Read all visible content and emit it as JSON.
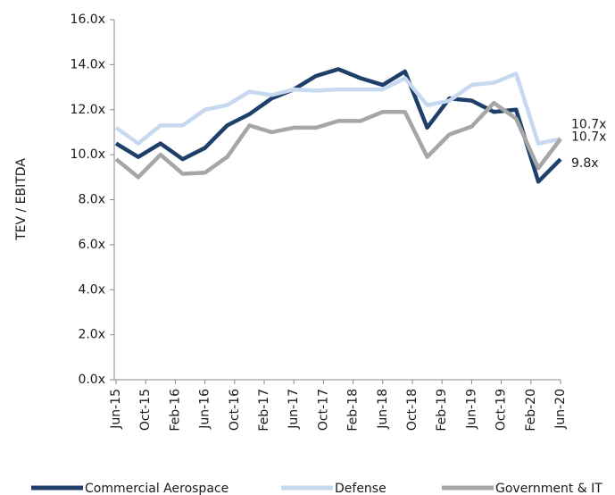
{
  "chart_data": {
    "type": "line",
    "y_label": "TEV / EBITDA",
    "x": [
      0,
      3,
      6,
      9,
      12,
      15,
      18,
      21,
      24,
      27,
      30,
      33,
      36,
      39,
      42,
      45,
      48,
      51,
      54,
      57,
      60
    ],
    "xlim": [
      0,
      60
    ],
    "xticks": [
      {
        "value": 0,
        "label": "Jun-15"
      },
      {
        "value": 4,
        "label": "Oct-15"
      },
      {
        "value": 8,
        "label": "Feb-16"
      },
      {
        "value": 12,
        "label": "Jun-16"
      },
      {
        "value": 16,
        "label": "Oct-16"
      },
      {
        "value": 20,
        "label": "Feb-17"
      },
      {
        "value": 24,
        "label": "Jun-17"
      },
      {
        "value": 28,
        "label": "Oct-17"
      },
      {
        "value": 32,
        "label": "Feb-18"
      },
      {
        "value": 36,
        "label": "Jun-18"
      },
      {
        "value": 40,
        "label": "Oct-18"
      },
      {
        "value": 44,
        "label": "Feb-19"
      },
      {
        "value": 48,
        "label": "Jun-19"
      },
      {
        "value": 52,
        "label": "Oct-19"
      },
      {
        "value": 56,
        "label": "Feb-20"
      },
      {
        "value": 60,
        "label": "Jun-20"
      }
    ],
    "ylim": [
      0,
      16
    ],
    "yticks": [
      {
        "value": 0,
        "label": "0.0x"
      },
      {
        "value": 2,
        "label": "2.0x"
      },
      {
        "value": 4,
        "label": "4.0x"
      },
      {
        "value": 6,
        "label": "6.0x"
      },
      {
        "value": 8,
        "label": "8.0x"
      },
      {
        "value": 10,
        "label": "10.0x"
      },
      {
        "value": 12,
        "label": "12.0x"
      },
      {
        "value": 14,
        "label": "14.0x"
      },
      {
        "value": 16,
        "label": "16.0x"
      }
    ],
    "legend": "bottom",
    "series": [
      {
        "name": "Commercial Aerospace",
        "color": "#1f3f6b",
        "values": [
          10.5,
          9.9,
          10.5,
          9.8,
          10.3,
          11.3,
          11.8,
          12.5,
          12.9,
          13.5,
          13.8,
          13.4,
          13.1,
          13.7,
          11.2,
          12.5,
          12.4,
          11.9,
          12.0,
          8.8,
          9.8
        ],
        "value_labels": [
          null,
          null,
          null,
          null,
          null,
          null,
          null,
          null,
          null,
          null,
          null,
          null,
          null,
          null,
          null,
          null,
          null,
          null,
          null,
          null,
          "9.8x"
        ]
      },
      {
        "name": "Defense",
        "color": "#c6d9f1",
        "values": [
          11.2,
          10.5,
          11.3,
          11.3,
          12.0,
          12.2,
          12.8,
          12.65,
          12.9,
          12.85,
          12.9,
          12.9,
          12.9,
          13.4,
          12.2,
          12.4,
          13.1,
          13.2,
          13.6,
          10.5,
          10.7
        ],
        "value_labels": [
          null,
          null,
          null,
          null,
          null,
          null,
          null,
          null,
          null,
          null,
          null,
          null,
          null,
          null,
          null,
          null,
          null,
          null,
          null,
          null,
          "10.7x"
        ]
      },
      {
        "name": "Government & IT",
        "color": "#a6a6a6",
        "values": [
          9.8,
          9.0,
          10.0,
          9.15,
          9.2,
          9.9,
          11.3,
          11.0,
          11.2,
          11.2,
          11.5,
          11.5,
          11.9,
          11.9,
          9.9,
          10.9,
          11.25,
          12.3,
          11.6,
          9.4,
          10.7
        ],
        "value_labels": [
          null,
          null,
          null,
          null,
          null,
          null,
          null,
          null,
          null,
          null,
          null,
          null,
          null,
          null,
          null,
          null,
          null,
          null,
          null,
          null,
          "10.7x"
        ]
      }
    ]
  }
}
